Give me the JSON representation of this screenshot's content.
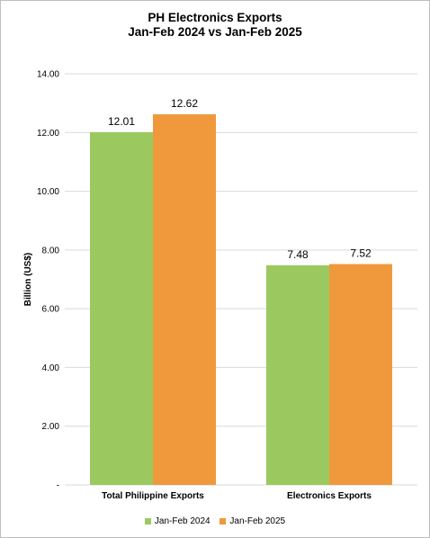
{
  "chart_data": {
    "type": "bar",
    "title": [
      "PH Electronics Exports",
      "Jan-Feb 2024 vs Jan-Feb 2025"
    ],
    "ylabel": "Billion (US$)",
    "xlabel": "",
    "categories": [
      "Total Philippine Exports",
      "Electronics Exports"
    ],
    "series": [
      {
        "name": "Jan-Feb 2024",
        "color": "#9BC95F",
        "values": [
          12.01,
          7.48
        ]
      },
      {
        "name": "Jan-Feb 2025",
        "color": "#F0993C",
        "values": [
          12.62,
          7.52
        ]
      }
    ],
    "ylim": [
      0,
      14
    ],
    "yticks": [
      0,
      2,
      4,
      6,
      8,
      10,
      12,
      14
    ],
    "ytick_labels": [
      "-",
      "2.00",
      "4.00",
      "6.00",
      "8.00",
      "10.00",
      "12.00",
      "14.00"
    ],
    "grid": true,
    "legend_position": "bottom"
  }
}
